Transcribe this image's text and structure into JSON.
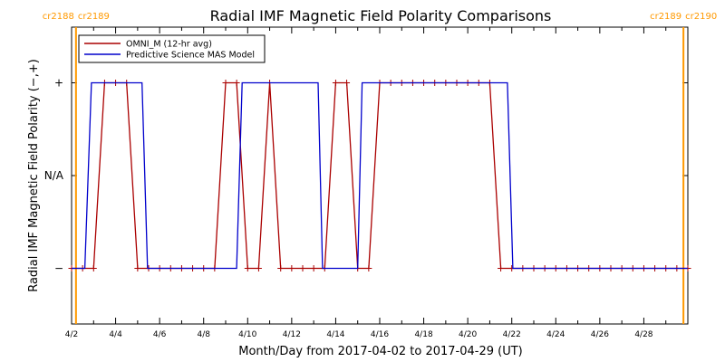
{
  "chart_data": {
    "type": "line",
    "title": "Radial IMF Magnetic Field Polarity Comparisons",
    "xlabel": "Month/Day from 2017-04-02 to 2017-04-29 (UT)",
    "ylabel": "Radial IMF Magnetic Field Polarity (−,+)",
    "x_range_days": [
      2.0,
      30.0
    ],
    "x_ticks": [
      {
        "day": 2,
        "label": "4/2"
      },
      {
        "day": 4,
        "label": "4/4"
      },
      {
        "day": 6,
        "label": "4/6"
      },
      {
        "day": 8,
        "label": "4/8"
      },
      {
        "day": 10,
        "label": "4/10"
      },
      {
        "day": 12,
        "label": "4/12"
      },
      {
        "day": 14,
        "label": "4/14"
      },
      {
        "day": 16,
        "label": "4/16"
      },
      {
        "day": 18,
        "label": "4/18"
      },
      {
        "day": 20,
        "label": "4/20"
      },
      {
        "day": 22,
        "label": "4/22"
      },
      {
        "day": 24,
        "label": "4/24"
      },
      {
        "day": 26,
        "label": "4/26"
      },
      {
        "day": 28,
        "label": "4/28"
      }
    ],
    "y_range": [
      -1.6,
      1.6
    ],
    "y_ticks": [
      {
        "value": 1,
        "label": "+"
      },
      {
        "value": 0,
        "label": "N/A"
      },
      {
        "value": -1,
        "label": "−"
      }
    ],
    "carrington_markers": [
      {
        "day": 2.2,
        "left_label": "cr2188",
        "right_label": "cr2189"
      },
      {
        "day": 29.8,
        "left_label": "cr2189",
        "right_label": "cr2190"
      }
    ],
    "legend_position": "top-left",
    "series": [
      {
        "name": "OMNI_M (12-hr avg)",
        "color": "#aa0000",
        "markers": true,
        "points": [
          [
            2.0,
            -1
          ],
          [
            2.5,
            -1
          ],
          [
            3.0,
            -1
          ],
          [
            3.5,
            1
          ],
          [
            4.0,
            1
          ],
          [
            4.5,
            1
          ],
          [
            5.0,
            -1
          ],
          [
            5.5,
            -1
          ],
          [
            6.0,
            -1
          ],
          [
            6.5,
            -1
          ],
          [
            7.0,
            -1
          ],
          [
            7.5,
            -1
          ],
          [
            8.0,
            -1
          ],
          [
            8.5,
            -1
          ],
          [
            9.0,
            1
          ],
          [
            9.5,
            1
          ],
          [
            10.0,
            -1
          ],
          [
            10.5,
            -1
          ],
          [
            11.0,
            1
          ],
          [
            11.5,
            -1
          ],
          [
            12.0,
            -1
          ],
          [
            12.5,
            -1
          ],
          [
            13.0,
            -1
          ],
          [
            13.5,
            -1
          ],
          [
            14.0,
            1
          ],
          [
            14.5,
            1
          ],
          [
            15.0,
            -1
          ],
          [
            15.5,
            -1
          ],
          [
            16.0,
            1
          ],
          [
            16.5,
            1
          ],
          [
            17.0,
            1
          ],
          [
            17.5,
            1
          ],
          [
            18.0,
            1
          ],
          [
            18.5,
            1
          ],
          [
            19.0,
            1
          ],
          [
            19.5,
            1
          ],
          [
            20.0,
            1
          ],
          [
            20.5,
            1
          ],
          [
            21.0,
            1
          ],
          [
            21.5,
            -1
          ],
          [
            22.0,
            -1
          ],
          [
            22.5,
            -1
          ],
          [
            23.0,
            -1
          ],
          [
            23.5,
            -1
          ],
          [
            24.0,
            -1
          ],
          [
            24.5,
            -1
          ],
          [
            25.0,
            -1
          ],
          [
            25.5,
            -1
          ],
          [
            26.0,
            -1
          ],
          [
            26.5,
            -1
          ],
          [
            27.0,
            -1
          ],
          [
            27.5,
            -1
          ],
          [
            28.0,
            -1
          ],
          [
            28.5,
            -1
          ],
          [
            29.0,
            -1
          ],
          [
            29.5,
            -1
          ],
          [
            30.0,
            -1
          ]
        ]
      },
      {
        "name": "Predictive Science MAS Model",
        "color": "#0000cc",
        "markers": false,
        "points": [
          [
            2.0,
            -1
          ],
          [
            2.6,
            -1
          ],
          [
            2.9,
            1
          ],
          [
            5.2,
            1
          ],
          [
            5.45,
            -1
          ],
          [
            9.5,
            -1
          ],
          [
            9.75,
            1
          ],
          [
            13.2,
            1
          ],
          [
            13.4,
            -1
          ],
          [
            15.0,
            -1
          ],
          [
            15.2,
            1
          ],
          [
            21.8,
            1
          ],
          [
            22.05,
            -1
          ],
          [
            30.0,
            -1
          ]
        ]
      }
    ]
  }
}
